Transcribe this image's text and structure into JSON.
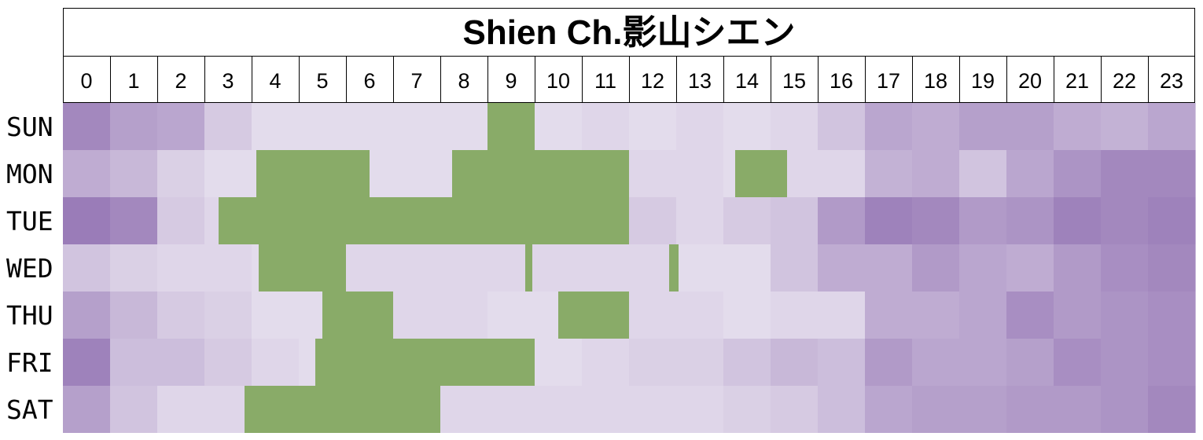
{
  "chart_data": {
    "type": "heatmap",
    "title": "Shien Ch.影山シエン",
    "x_categories": [
      "0",
      "1",
      "2",
      "3",
      "4",
      "5",
      "6",
      "7",
      "8",
      "9",
      "10",
      "11",
      "12",
      "13",
      "14",
      "15",
      "16",
      "17",
      "18",
      "19",
      "20",
      "21",
      "22",
      "23"
    ],
    "y_categories": [
      "SUN",
      "MON",
      "TUE",
      "WED",
      "THU",
      "FRI",
      "SAT"
    ],
    "colors": {
      "low": "#e8e2ef",
      "high": "#8c6aae",
      "highlight": "#89ab68",
      "grid": "#000000"
    },
    "value_scale": [
      0,
      1
    ],
    "intensity": [
      [
        0.75,
        0.55,
        0.5,
        0.2,
        0.05,
        0.05,
        0.05,
        0.05,
        0.05,
        0.05,
        0.05,
        0.1,
        0.05,
        0.1,
        0.05,
        0.1,
        0.25,
        0.5,
        0.45,
        0.55,
        0.55,
        0.45,
        0.4,
        0.5
      ],
      [
        0.45,
        0.35,
        0.15,
        0.05,
        0.05,
        0.05,
        0.05,
        0.05,
        0.05,
        0.05,
        0.05,
        0.05,
        0.1,
        0.1,
        0.05,
        0.1,
        0.1,
        0.4,
        0.45,
        0.25,
        0.5,
        0.65,
        0.75,
        0.75
      ],
      [
        0.85,
        0.75,
        0.2,
        0.1,
        0.05,
        0.05,
        0.05,
        0.05,
        0.05,
        0.05,
        0.05,
        0.05,
        0.2,
        0.1,
        0.2,
        0.25,
        0.6,
        0.8,
        0.75,
        0.6,
        0.65,
        0.8,
        0.75,
        0.8
      ],
      [
        0.25,
        0.15,
        0.1,
        0.1,
        0.05,
        0.05,
        0.1,
        0.1,
        0.1,
        0.1,
        0.1,
        0.1,
        0.1,
        0.05,
        0.05,
        0.25,
        0.45,
        0.45,
        0.6,
        0.5,
        0.45,
        0.6,
        0.7,
        0.75
      ],
      [
        0.55,
        0.35,
        0.2,
        0.15,
        0.05,
        0.05,
        0.05,
        0.1,
        0.1,
        0.05,
        0.05,
        0.05,
        0.1,
        0.1,
        0.05,
        0.1,
        0.1,
        0.45,
        0.45,
        0.5,
        0.7,
        0.6,
        0.65,
        0.7
      ],
      [
        0.8,
        0.3,
        0.3,
        0.2,
        0.1,
        0.05,
        0.05,
        0.05,
        0.05,
        0.05,
        0.05,
        0.1,
        0.15,
        0.15,
        0.25,
        0.35,
        0.3,
        0.6,
        0.5,
        0.5,
        0.55,
        0.7,
        0.65,
        0.7
      ],
      [
        0.55,
        0.25,
        0.1,
        0.1,
        0.05,
        0.05,
        0.05,
        0.05,
        0.1,
        0.1,
        0.1,
        0.1,
        0.1,
        0.1,
        0.15,
        0.2,
        0.3,
        0.5,
        0.55,
        0.55,
        0.6,
        0.6,
        0.65,
        0.75
      ]
    ],
    "highlighted_cells": [
      {
        "day": "SUN",
        "from": 9,
        "to": 10
      },
      {
        "day": "MON",
        "from": 4.1,
        "to": 6.5
      },
      {
        "day": "MON",
        "from": 8.25,
        "to": 12
      },
      {
        "day": "MON",
        "from": 14.25,
        "to": 15.35
      },
      {
        "day": "TUE",
        "from": 3.3,
        "to": 12
      },
      {
        "day": "WED",
        "from": 4.15,
        "to": 6
      },
      {
        "day": "WED",
        "from": 9.8,
        "to": 9.95
      },
      {
        "day": "WED",
        "from": 12.85,
        "to": 13.05
      },
      {
        "day": "THU",
        "from": 5.5,
        "to": 7
      },
      {
        "day": "THU",
        "from": 10.5,
        "to": 12
      },
      {
        "day": "FRI",
        "from": 5.35,
        "to": 10
      },
      {
        "day": "SAT",
        "from": 3.85,
        "to": 8
      }
    ]
  }
}
